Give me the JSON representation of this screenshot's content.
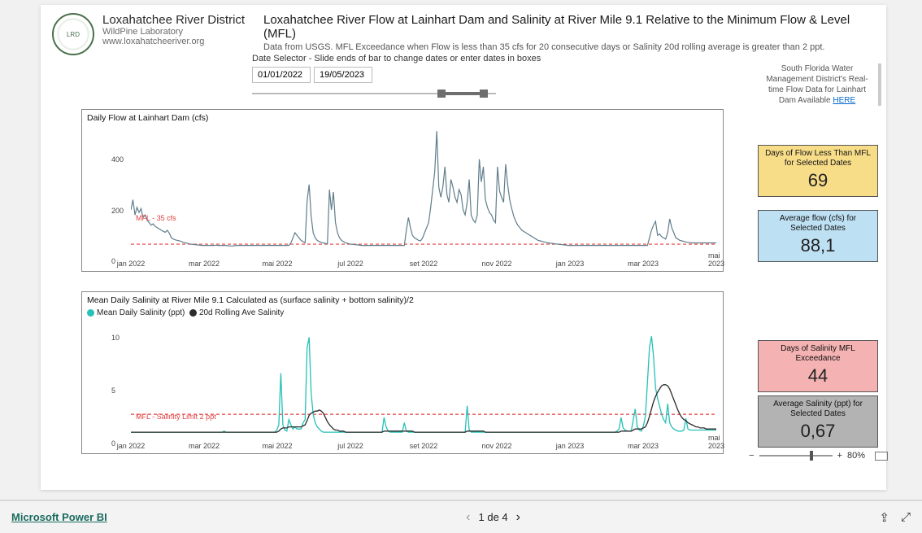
{
  "org": {
    "name": "Loxahatchee River District",
    "subtitle": "WildPine Laboratory",
    "url": "www.loxahatcheeriver.org"
  },
  "page": {
    "title": "Loxahatchee River Flow at Lainhart Dam and Salinity at River Mile 9.1 Relative to the Minimum Flow & Level (MFL)",
    "description": "Data from USGS.  MFL Exceedance when Flow is less than 35 cfs for 20 consecutive days or Salinity 20d rolling average is greater than 2 ppt."
  },
  "date_selector": {
    "label": "Date Selector - Slide ends of bar to change dates or enter dates in boxes",
    "start": "01/01/2022",
    "end": "19/05/2023"
  },
  "sfwmd_note": {
    "text": "South Florida Water Management District's Real-time Flow Data for Lainhart Dam Available ",
    "link_label": "HERE"
  },
  "flow_chart": {
    "type": "line",
    "title": "Daily Flow at Lainhart Dam (cfs)",
    "mfl_label": "MFL - 35 cfs",
    "mfl_value": 35,
    "line_color": "#607d8b",
    "mfl_color": "#e04040",
    "ylim": [
      0,
      500
    ],
    "yticks": [
      0,
      200,
      400
    ],
    "x_labels": [
      "jan 2022",
      "mar 2022",
      "mai 2022",
      "jul 2022",
      "set 2022",
      "nov 2022",
      "jan 2023",
      "mar 2023",
      "mai 2023"
    ],
    "values": [
      170,
      210,
      150,
      180,
      160,
      175,
      140,
      150,
      130,
      120,
      110,
      115,
      105,
      100,
      95,
      90,
      85,
      82,
      90,
      78,
      60,
      55,
      52,
      50,
      48,
      45,
      42,
      40,
      38,
      36,
      35,
      34,
      33,
      32,
      31,
      30,
      30,
      30,
      30,
      30,
      30,
      30,
      31,
      30,
      30,
      30,
      30,
      30,
      29,
      28,
      28,
      29,
      30,
      30,
      30,
      30,
      30,
      30,
      30,
      30,
      30,
      30,
      30,
      30,
      30,
      30,
      30,
      30,
      30,
      30,
      30,
      30,
      30,
      30,
      30,
      30,
      30,
      30,
      30,
      40,
      60,
      80,
      70,
      60,
      50,
      45,
      40,
      205,
      270,
      145,
      80,
      60,
      50,
      45,
      42,
      40,
      38,
      36,
      250,
      170,
      240,
      120,
      80,
      60,
      50,
      45,
      40,
      38,
      36,
      35,
      34,
      33,
      32,
      31,
      30,
      30,
      30,
      30,
      30,
      30,
      30,
      30,
      30,
      30,
      30,
      30,
      30,
      30,
      30,
      30,
      30,
      30,
      30,
      30,
      30,
      30,
      90,
      140,
      100,
      70,
      60,
      55,
      50,
      48,
      60,
      80,
      100,
      120,
      180,
      250,
      320,
      480,
      260,
      220,
      260,
      340,
      230,
      200,
      290,
      260,
      220,
      200,
      250,
      230,
      170,
      150,
      200,
      290,
      150,
      130,
      120,
      150,
      370,
      280,
      340,
      210,
      180,
      160,
      150,
      130,
      120,
      340,
      245,
      220,
      200,
      350,
      270,
      210,
      175,
      145,
      125,
      110,
      100,
      90,
      85,
      80,
      75,
      70,
      65,
      60,
      55,
      50,
      48,
      46,
      44,
      42,
      40,
      39,
      38,
      37,
      36,
      35,
      34,
      33,
      32,
      31,
      30,
      30,
      30,
      30,
      30,
      30,
      30,
      30,
      30,
      30,
      30,
      30,
      30,
      30,
      30,
      30,
      30,
      30,
      30,
      30,
      30,
      30,
      30,
      30,
      30,
      30,
      30,
      30,
      30,
      30,
      30,
      30,
      30,
      30,
      30,
      30,
      30,
      30,
      30,
      30,
      60,
      90,
      110,
      125,
      70,
      75,
      65,
      60,
      55,
      80,
      135,
      100,
      80,
      60,
      55,
      50,
      48,
      46,
      44,
      42,
      41,
      40,
      40,
      40,
      40,
      40,
      40,
      40,
      40,
      40,
      40,
      40,
      40,
      40
    ]
  },
  "salinity_chart": {
    "type": "line",
    "title": "Mean Daily Salinity at River Mile 9.1  Calculated as (surface salinity + bottom salinity)/2",
    "legend": {
      "series1": "Mean Daily Salinity (ppt)",
      "series2": "20d Rolling Ave Salinity"
    },
    "mfl_label": "MFL - Salinity Limit 2 ppt",
    "mfl_value": 2,
    "daily_color": "#26c1b7",
    "rolling_color": "#2b2b2b",
    "mfl_color": "#e04040",
    "ylim": [
      0,
      10.5
    ],
    "yticks": [
      0,
      5,
      10
    ],
    "x_labels": [
      "jan 2022",
      "mar 2022",
      "mai 2022",
      "jul 2022",
      "set 2022",
      "nov 2022",
      "jan 2023",
      "mar 2023",
      "mai 2023"
    ],
    "daily": [
      0.3,
      0.3,
      0.3,
      0.3,
      0.3,
      0.3,
      0.3,
      0.3,
      0.3,
      0.3,
      0.3,
      0.3,
      0.3,
      0.3,
      0.3,
      0.3,
      0.3,
      0.3,
      0.3,
      0.3,
      0.3,
      0.3,
      0.3,
      0.3,
      0.3,
      0.3,
      0.3,
      0.3,
      0.3,
      0.3,
      0.3,
      0.3,
      0.3,
      0.3,
      0.3,
      0.3,
      0.3,
      0.3,
      0.3,
      0.3,
      0.3,
      0.3,
      0.3,
      0.3,
      0.3,
      0.3,
      0.4,
      0.3,
      0.3,
      0.3,
      0.3,
      0.3,
      0.3,
      0.3,
      0.3,
      0.3,
      0.3,
      0.3,
      0.3,
      0.3,
      0.3,
      0.3,
      0.3,
      0.3,
      0.3,
      0.3,
      0.3,
      0.3,
      0.3,
      0.3,
      0.3,
      0.3,
      0.5,
      1.0,
      5.9,
      1.0,
      0.5,
      0.4,
      1.5,
      1.0,
      0.6,
      0.8,
      0.6,
      0.6,
      0.6,
      1.2,
      1.5,
      8.3,
      9.3,
      4.0,
      2.0,
      1.2,
      0.8,
      0.6,
      0.4,
      0.3,
      0.3,
      0.3,
      0.3,
      0.3,
      0.3,
      0.3,
      0.3,
      0.3,
      0.3,
      0.3,
      0.3,
      0.3,
      0.3,
      0.3,
      0.3,
      0.3,
      0.3,
      0.3,
      0.3,
      0.3,
      0.3,
      0.3,
      0.3,
      0.3,
      0.3,
      0.3,
      0.3,
      0.3,
      0.3,
      1.7,
      0.8,
      0.4,
      0.3,
      0.3,
      0.3,
      0.3,
      0.3,
      0.3,
      0.3,
      1.2,
      0.4,
      0.3,
      0.3,
      0.3,
      0.3,
      0.3,
      0.3,
      0.3,
      0.3,
      0.3,
      0.3,
      0.3,
      0.3,
      0.3,
      0.3,
      0.3,
      0.3,
      0.3,
      0.3,
      0.3,
      0.3,
      0.3,
      0.3,
      0.3,
      0.3,
      0.3,
      0.3,
      0.3,
      0.3,
      0.3,
      2.8,
      0.5,
      0.3,
      0.3,
      0.3,
      0.3,
      0.3,
      0.3,
      0.3,
      0.3,
      0.3,
      0.3,
      0.3,
      0.3,
      0.3,
      0.3,
      0.3,
      0.3,
      0.3,
      0.3,
      0.3,
      0.3,
      0.3,
      0.3,
      0.3,
      0.3,
      0.3,
      0.3,
      0.3,
      0.3,
      0.3,
      0.3,
      0.3,
      0.3,
      0.3,
      0.3,
      0.3,
      0.3,
      0.3,
      0.3,
      0.3,
      0.3,
      0.3,
      0.3,
      0.3,
      0.3,
      0.3,
      0.3,
      0.3,
      0.3,
      0.3,
      0.3,
      0.3,
      0.3,
      0.3,
      0.3,
      0.3,
      0.3,
      0.3,
      0.3,
      0.3,
      0.3,
      0.3,
      0.3,
      0.3,
      0.3,
      0.3,
      0.3,
      0.3,
      0.3,
      0.3,
      0.3,
      0.3,
      0.3,
      0.4,
      0.6,
      1.7,
      0.7,
      0.5,
      0.4,
      0.4,
      0.4,
      1.5,
      2.5,
      0.8,
      0.5,
      0.4,
      0.9,
      1.8,
      5.0,
      8.3,
      9.4,
      7.5,
      4.5,
      3.5,
      2.8,
      2.0,
      1.5,
      1.2,
      3.0,
      1.2,
      0.8,
      0.6,
      0.5,
      0.4,
      0.4,
      0.4,
      0.5,
      1.6,
      0.6,
      0.5,
      0.5,
      0.5,
      0.5,
      0.5,
      0.5,
      0.5,
      0.5,
      0.5,
      0.5,
      0.5,
      0.5,
      0.5,
      0.5
    ],
    "rolling": [
      0.3,
      0.3,
      0.3,
      0.3,
      0.3,
      0.3,
      0.3,
      0.3,
      0.3,
      0.3,
      0.3,
      0.3,
      0.3,
      0.3,
      0.3,
      0.3,
      0.3,
      0.3,
      0.3,
      0.3,
      0.3,
      0.3,
      0.3,
      0.3,
      0.3,
      0.3,
      0.3,
      0.3,
      0.3,
      0.3,
      0.3,
      0.3,
      0.3,
      0.3,
      0.3,
      0.3,
      0.3,
      0.3,
      0.3,
      0.3,
      0.3,
      0.3,
      0.3,
      0.3,
      0.3,
      0.3,
      0.3,
      0.3,
      0.3,
      0.3,
      0.3,
      0.3,
      0.3,
      0.3,
      0.3,
      0.3,
      0.3,
      0.3,
      0.3,
      0.3,
      0.3,
      0.3,
      0.3,
      0.3,
      0.3,
      0.3,
      0.3,
      0.3,
      0.3,
      0.3,
      0.3,
      0.3,
      0.3,
      0.4,
      0.6,
      0.7,
      0.7,
      0.7,
      0.8,
      0.8,
      0.8,
      0.8,
      0.8,
      0.8,
      0.8,
      0.9,
      1.0,
      1.4,
      1.9,
      2.1,
      2.2,
      2.3,
      2.3,
      2.4,
      2.3,
      2.1,
      1.7,
      1.3,
      1.0,
      0.8,
      0.6,
      0.5,
      0.5,
      0.4,
      0.4,
      0.4,
      0.3,
      0.3,
      0.3,
      0.3,
      0.3,
      0.3,
      0.3,
      0.3,
      0.3,
      0.3,
      0.3,
      0.3,
      0.3,
      0.3,
      0.3,
      0.3,
      0.3,
      0.3,
      0.3,
      0.4,
      0.4,
      0.4,
      0.4,
      0.4,
      0.4,
      0.4,
      0.4,
      0.4,
      0.4,
      0.4,
      0.4,
      0.4,
      0.4,
      0.4,
      0.3,
      0.3,
      0.3,
      0.3,
      0.3,
      0.3,
      0.3,
      0.3,
      0.3,
      0.3,
      0.3,
      0.3,
      0.3,
      0.3,
      0.3,
      0.3,
      0.3,
      0.3,
      0.3,
      0.3,
      0.3,
      0.3,
      0.3,
      0.3,
      0.3,
      0.3,
      0.4,
      0.4,
      0.4,
      0.4,
      0.4,
      0.4,
      0.4,
      0.4,
      0.4,
      0.3,
      0.3,
      0.3,
      0.3,
      0.3,
      0.3,
      0.3,
      0.3,
      0.3,
      0.3,
      0.3,
      0.3,
      0.3,
      0.3,
      0.3,
      0.3,
      0.3,
      0.3,
      0.3,
      0.3,
      0.3,
      0.3,
      0.3,
      0.3,
      0.3,
      0.3,
      0.3,
      0.3,
      0.3,
      0.3,
      0.3,
      0.3,
      0.3,
      0.3,
      0.3,
      0.3,
      0.3,
      0.3,
      0.3,
      0.3,
      0.3,
      0.3,
      0.3,
      0.3,
      0.3,
      0.3,
      0.3,
      0.3,
      0.3,
      0.3,
      0.3,
      0.3,
      0.3,
      0.3,
      0.3,
      0.3,
      0.3,
      0.3,
      0.3,
      0.3,
      0.3,
      0.3,
      0.3,
      0.3,
      0.3,
      0.3,
      0.3,
      0.4,
      0.4,
      0.4,
      0.4,
      0.4,
      0.4,
      0.5,
      0.6,
      0.6,
      0.6,
      0.6,
      0.7,
      0.8,
      1.2,
      1.8,
      2.5,
      3.2,
      3.7,
      4.1,
      4.4,
      4.7,
      4.8,
      4.8,
      4.7,
      4.4,
      3.9,
      3.4,
      2.9,
      2.4,
      2.0,
      1.7,
      1.5,
      1.4,
      1.2,
      1.1,
      1.0,
      0.9,
      0.8,
      0.8,
      0.7,
      0.7,
      0.7,
      0.6,
      0.6,
      0.6,
      0.6,
      0.6,
      0.6
    ]
  },
  "cards": {
    "days_flow_below_mfl": {
      "title": "Days of Flow Less Than MFL for Selected Dates",
      "value": "69"
    },
    "avg_flow": {
      "title": "Average flow (cfs) for Selected Dates",
      "value": "88,1"
    },
    "days_sal_exceed": {
      "title": "Days of Salinity MFL Exceedance",
      "value": "44"
    },
    "avg_salinity": {
      "title": "Average Salinity (ppt) for Selected Dates",
      "value": "0,67"
    }
  },
  "footer": {
    "brand": "Microsoft Power BI",
    "pager_label": "1 de 4",
    "zoom_label": "80%"
  }
}
